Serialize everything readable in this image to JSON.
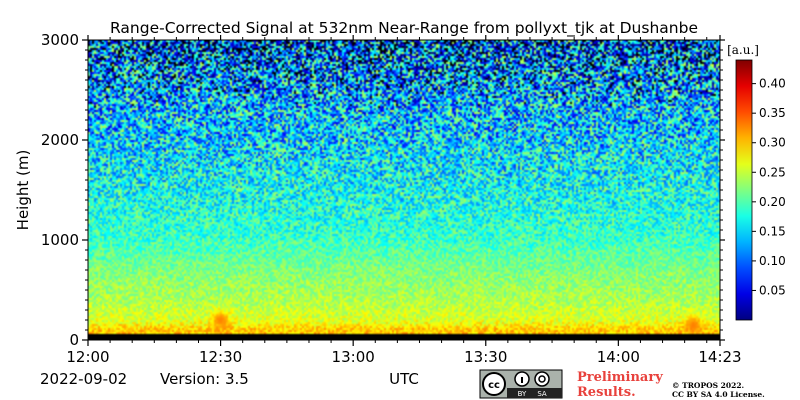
{
  "chart_data": {
    "type": "heatmap",
    "title": "Range-Corrected Signal at 532nm Near-Range from pollyxt_tjk at Dushanbe",
    "xlabel": "UTC",
    "ylabel": "Height (m)",
    "x_ticks": [
      "12:00",
      "12:30",
      "13:00",
      "13:30",
      "14:00",
      "14:23"
    ],
    "x_tick_minutes": [
      0,
      30,
      60,
      90,
      120,
      143
    ],
    "xlim_minutes": [
      0,
      143
    ],
    "y_ticks": [
      0,
      1000,
      2000,
      3000
    ],
    "ylim": [
      0,
      3000
    ],
    "colorbar": {
      "unit": "[a.u.]",
      "ticks": [
        "0.05",
        "0.10",
        "0.15",
        "0.20",
        "0.25",
        "0.30",
        "0.35",
        "0.40"
      ],
      "tick_values": [
        0.05,
        0.1,
        0.15,
        0.2,
        0.25,
        0.3,
        0.35,
        0.4
      ],
      "range": [
        0.0,
        0.44
      ],
      "colormap": "jet-like"
    },
    "profile": {
      "height_m": [
        100,
        200,
        400,
        700,
        1000,
        1500,
        2000,
        2500,
        3000
      ],
      "typical_value": [
        0.3,
        0.26,
        0.24,
        0.22,
        0.19,
        0.17,
        0.15,
        0.13,
        0.1
      ]
    },
    "features": [
      {
        "time_min": 30,
        "height_m": 200,
        "value": 0.33
      },
      {
        "time_min": 137,
        "height_m": 150,
        "value": 0.33
      }
    ],
    "no_signal_below_m": 60
  },
  "footer": {
    "date": "2022-09-02",
    "version": "Version: 3.5",
    "license_badge_left": "cc",
    "license_badge_by": "BY",
    "license_badge_sa": "SA",
    "preliminary_line1": "Preliminary",
    "preliminary_line2": "Results.",
    "copyright_line1": "© TROPOS 2022.",
    "copyright_line2": "CC BY SA 4.0 License."
  },
  "colors": {
    "preliminary": "#e8413c",
    "badge_bg": "#aab2ab",
    "badge_dark": "#222222"
  }
}
